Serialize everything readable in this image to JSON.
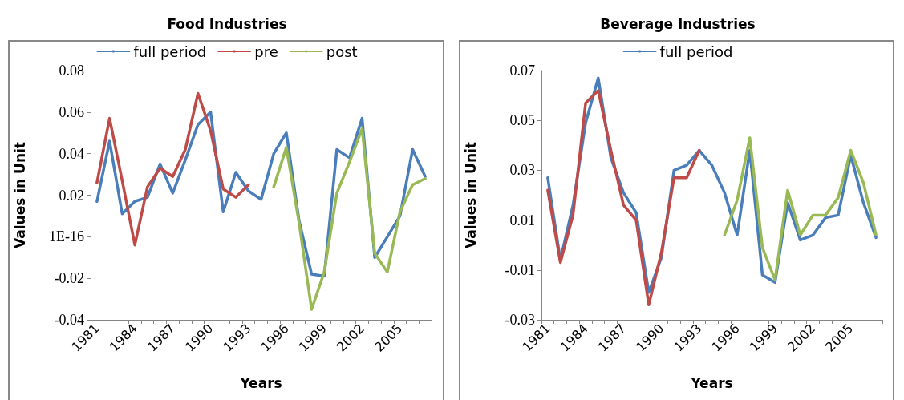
{
  "chart_data": [
    {
      "type": "line",
      "title": "Food Industries",
      "xlabel": "Years",
      "ylabel": "Values in Unit",
      "categories": [
        "1981",
        null,
        null,
        "1984",
        null,
        null,
        "1987",
        null,
        null,
        "1990",
        null,
        null,
        "1993",
        null,
        null,
        "1996",
        null,
        null,
        "1999",
        null,
        null,
        "2002",
        null,
        null,
        "2005",
        null,
        null
      ],
      "series": [
        {
          "name": "full period",
          "color": "#4a7ebb",
          "values": [
            0.017,
            0.046,
            0.011,
            0.017,
            0.019,
            0.035,
            0.021,
            0.037,
            0.054,
            0.06,
            0.012,
            0.031,
            0.022,
            0.018,
            0.04,
            0.05,
            0.008,
            -0.018,
            -0.019,
            0.042,
            0.038,
            0.057,
            -0.01,
            0.0,
            0.01,
            0.042,
            0.029
          ]
        },
        {
          "name": "pre",
          "color": "#be4b48",
          "values": [
            0.026,
            0.057,
            0.027,
            -0.004,
            0.024,
            0.033,
            0.029,
            0.042,
            0.069,
            0.051,
            0.023,
            0.019,
            0.025,
            null,
            null,
            null,
            null,
            null,
            null,
            null,
            null,
            null,
            null,
            null,
            null,
            null,
            null
          ]
        },
        {
          "name": "post",
          "color": "#98b954",
          "values": [
            null,
            null,
            null,
            null,
            null,
            null,
            null,
            null,
            null,
            null,
            null,
            null,
            null,
            null,
            0.024,
            0.043,
            0.007,
            -0.035,
            -0.017,
            0.021,
            0.036,
            0.052,
            -0.008,
            -0.017,
            0.012,
            0.025,
            0.028
          ]
        }
      ],
      "ylim": [
        -0.04,
        0.08
      ],
      "yticks": [
        -0.04,
        -0.02,
        {
          "value": 0,
          "label": "1E-16"
        },
        0.02,
        0.04,
        0.06,
        0.08
      ],
      "grid": false,
      "legend": "top",
      "marker": "none",
      "line_style": "solid"
    },
    {
      "type": "line",
      "title": "Beverage Industries",
      "xlabel": "Years",
      "ylabel": "Values in Unit",
      "categories": [
        "1981",
        null,
        null,
        "1984",
        null,
        null,
        "1987",
        null,
        null,
        "1990",
        null,
        null,
        "1993",
        null,
        null,
        "1996",
        null,
        null,
        "1999",
        null,
        null,
        "2002",
        null,
        null,
        "2005",
        null,
        null
      ],
      "series": [
        {
          "name": "full period",
          "color": "#4a7ebb",
          "values": [
            0.027,
            -0.006,
            0.016,
            0.049,
            0.067,
            0.035,
            0.021,
            0.013,
            -0.019,
            -0.005,
            0.03,
            0.032,
            0.038,
            0.032,
            0.021,
            0.004,
            0.038,
            -0.012,
            -0.015,
            0.017,
            0.002,
            0.004,
            0.011,
            0.012,
            0.036,
            0.017,
            0.003
          ]
        },
        {
          "color": "#be4b48",
          "values": [
            0.022,
            -0.007,
            0.012,
            0.057,
            0.062,
            0.038,
            0.016,
            0.01,
            -0.024,
            -0.003,
            0.027,
            0.027,
            0.038,
            null,
            null,
            null,
            null,
            null,
            null,
            null,
            null,
            null,
            null,
            null,
            null,
            null,
            null
          ]
        },
        {
          "color": "#98b954",
          "values": [
            null,
            null,
            null,
            null,
            null,
            null,
            null,
            null,
            null,
            null,
            null,
            null,
            null,
            null,
            0.004,
            0.018,
            0.043,
            -0.001,
            -0.014,
            0.022,
            0.004,
            0.012,
            0.012,
            0.019,
            0.038,
            0.025,
            0.004
          ]
        }
      ],
      "ylim": [
        -0.03,
        0.07
      ],
      "yticks": [
        -0.03,
        -0.01,
        0.01,
        0.03,
        0.05,
        0.07
      ],
      "grid": false,
      "legend": "top",
      "marker": "none",
      "line_style": "solid"
    }
  ]
}
